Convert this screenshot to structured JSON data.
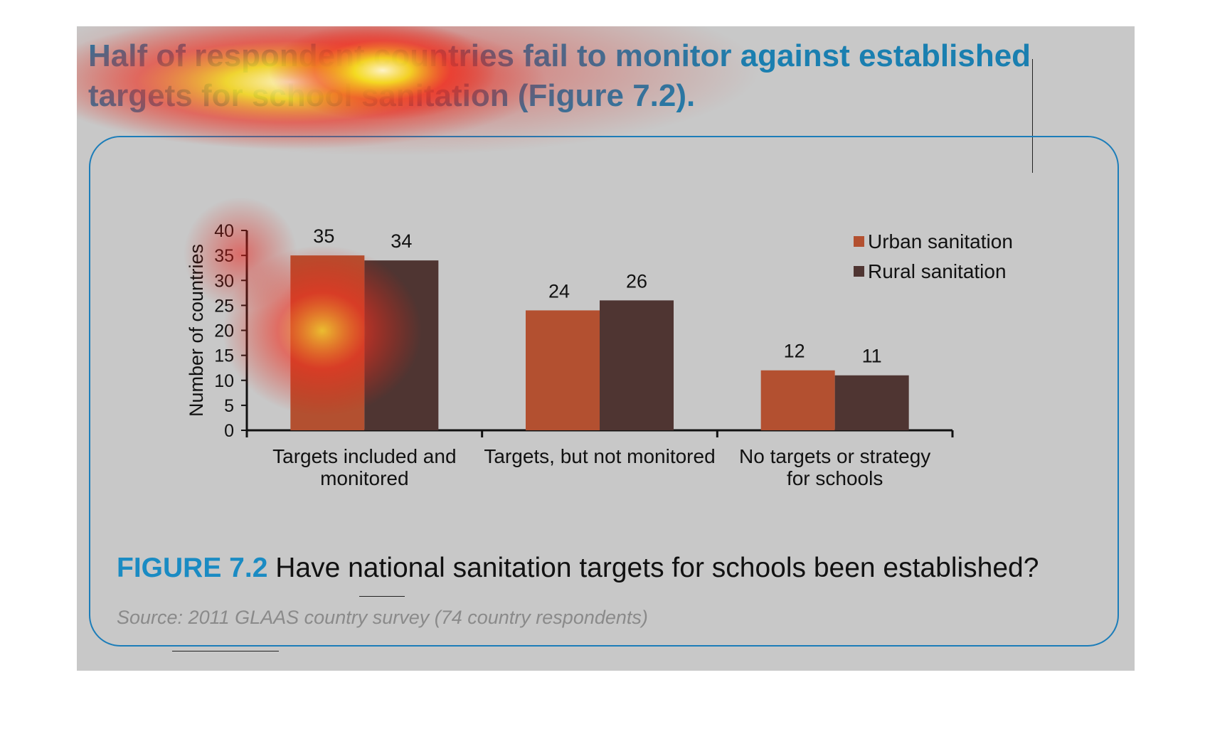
{
  "headline": "Half of respondent countries fail to monitor against established targets for school sanitation (Figure 7.2).",
  "figure": {
    "label": "FIGURE 7.2",
    "title": "Have national sanitation targets for schools been established?",
    "source": "Source: 2011 GLAAS country survey (74 country respondents)"
  },
  "colors": {
    "urban": "#b35030",
    "rural": "#4f3532",
    "accent": "#1a8bc3",
    "panel": "#c8c8c8"
  },
  "chart_data": {
    "type": "bar",
    "title": "",
    "xlabel": "",
    "ylabel": "Number of countries",
    "ylim": [
      0,
      40
    ],
    "yticks": [
      0,
      5,
      10,
      15,
      20,
      25,
      30,
      35,
      40
    ],
    "categories": [
      [
        "Targets included and",
        "monitored"
      ],
      [
        "Targets, but not monitored"
      ],
      [
        "No targets or strategy",
        "for schools"
      ]
    ],
    "series": [
      {
        "name": "Urban sanitation",
        "values": [
          35,
          24,
          12
        ]
      },
      {
        "name": "Rural sanitation",
        "values": [
          34,
          26,
          11
        ]
      }
    ],
    "legend_position": "top-right",
    "grid": false
  }
}
